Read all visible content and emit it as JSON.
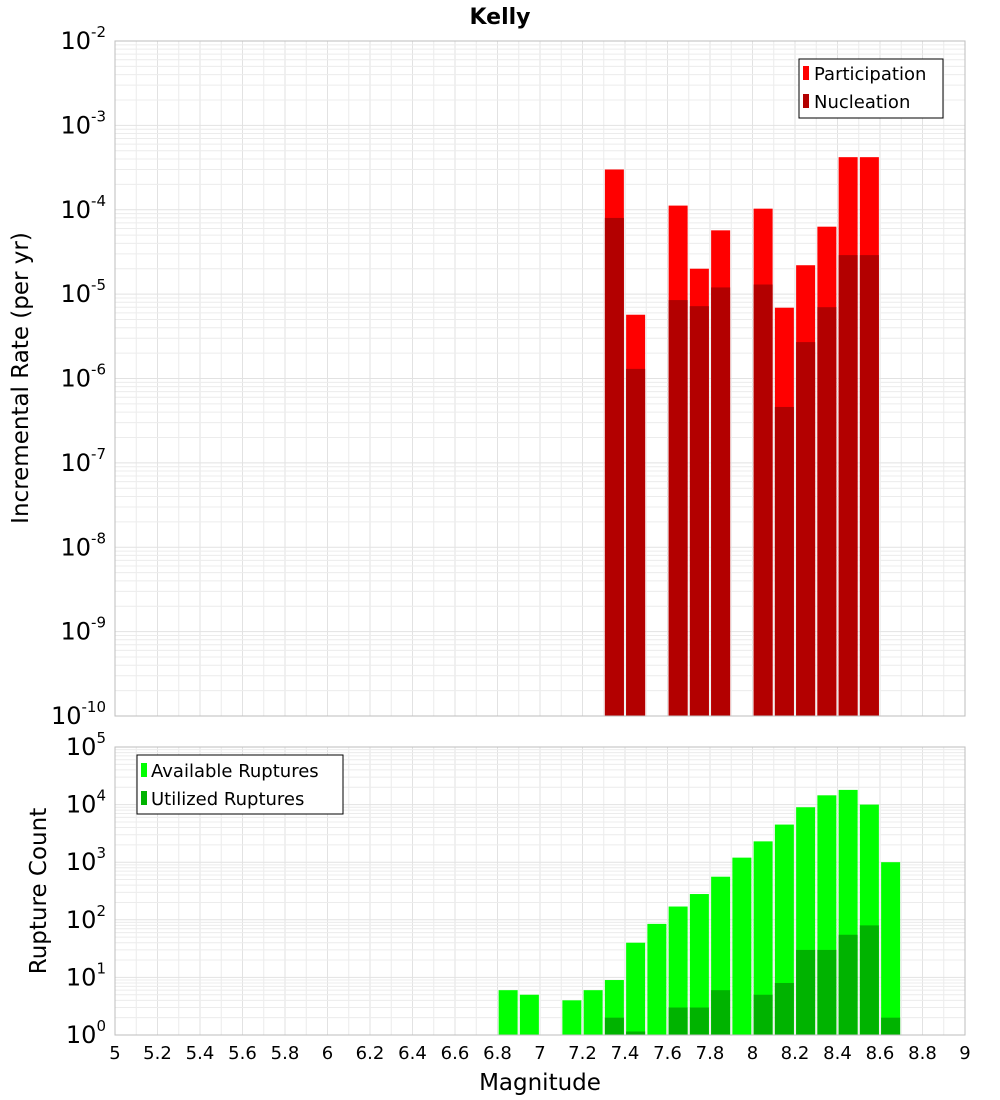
{
  "title": "Kelly",
  "colors": {
    "participation": "#ff0000",
    "nucleation": "#b30000",
    "available": "#00ff00",
    "utilized": "#00b300"
  },
  "chart_data": [
    {
      "type": "bar",
      "title": "Kelly",
      "xlabel": "",
      "ylabel": "Incremental Rate (per yr)",
      "yscale": "log",
      "ylim": [
        1e-10,
        0.01
      ],
      "xlim": [
        5,
        9
      ],
      "grid": true,
      "legend_position": "top-right",
      "x": [
        7.35,
        7.45,
        7.65,
        7.75,
        7.85,
        8.05,
        8.15,
        8.25,
        8.35,
        8.45,
        8.55
      ],
      "series": [
        {
          "name": "Participation",
          "color": "#ff0000",
          "values": [
            0.0003,
            5.7e-06,
            0.000112,
            2e-05,
            5.7e-05,
            0.000103,
            6.9e-06,
            2.2e-05,
            6.3e-05,
            0.00042,
            0.00042
          ]
        },
        {
          "name": "Nucleation",
          "color": "#b30000",
          "values": [
            8e-05,
            1.3e-06,
            8.5e-06,
            7.2e-06,
            1.2e-05,
            1.3e-05,
            4.6e-07,
            2.7e-06,
            7e-06,
            2.9e-05,
            2.9e-05
          ]
        }
      ]
    },
    {
      "type": "bar",
      "xlabel": "Magnitude",
      "ylabel": "Rupture Count",
      "yscale": "log",
      "ylim": [
        1,
        100000
      ],
      "xlim": [
        5,
        9
      ],
      "grid": true,
      "legend_position": "top-left",
      "x_ticks": [
        "5",
        "5.2",
        "5.4",
        "5.6",
        "5.8",
        "6",
        "6.2",
        "6.4",
        "6.6",
        "6.8",
        "7",
        "7.2",
        "7.4",
        "7.6",
        "7.8",
        "8",
        "8.2",
        "8.4",
        "8.6",
        "8.8",
        "9"
      ],
      "x": [
        6.85,
        6.95,
        7.15,
        7.25,
        7.35,
        7.45,
        7.55,
        7.65,
        7.75,
        7.85,
        7.95,
        8.05,
        8.15,
        8.25,
        8.35,
        8.45,
        8.55,
        8.65
      ],
      "series": [
        {
          "name": "Available Ruptures",
          "color": "#00ff00",
          "values": [
            6,
            5,
            4,
            6,
            9,
            40,
            85,
            170,
            280,
            560,
            1200,
            2300,
            4500,
            9000,
            14500,
            18000,
            10000,
            1000
          ]
        },
        {
          "name": "Utilized Ruptures",
          "color": "#00b300",
          "values": [
            0,
            0,
            0,
            0,
            2,
            1.15,
            0,
            3,
            3,
            6,
            0,
            5,
            8,
            30,
            30,
            55,
            80,
            2
          ]
        }
      ]
    }
  ]
}
